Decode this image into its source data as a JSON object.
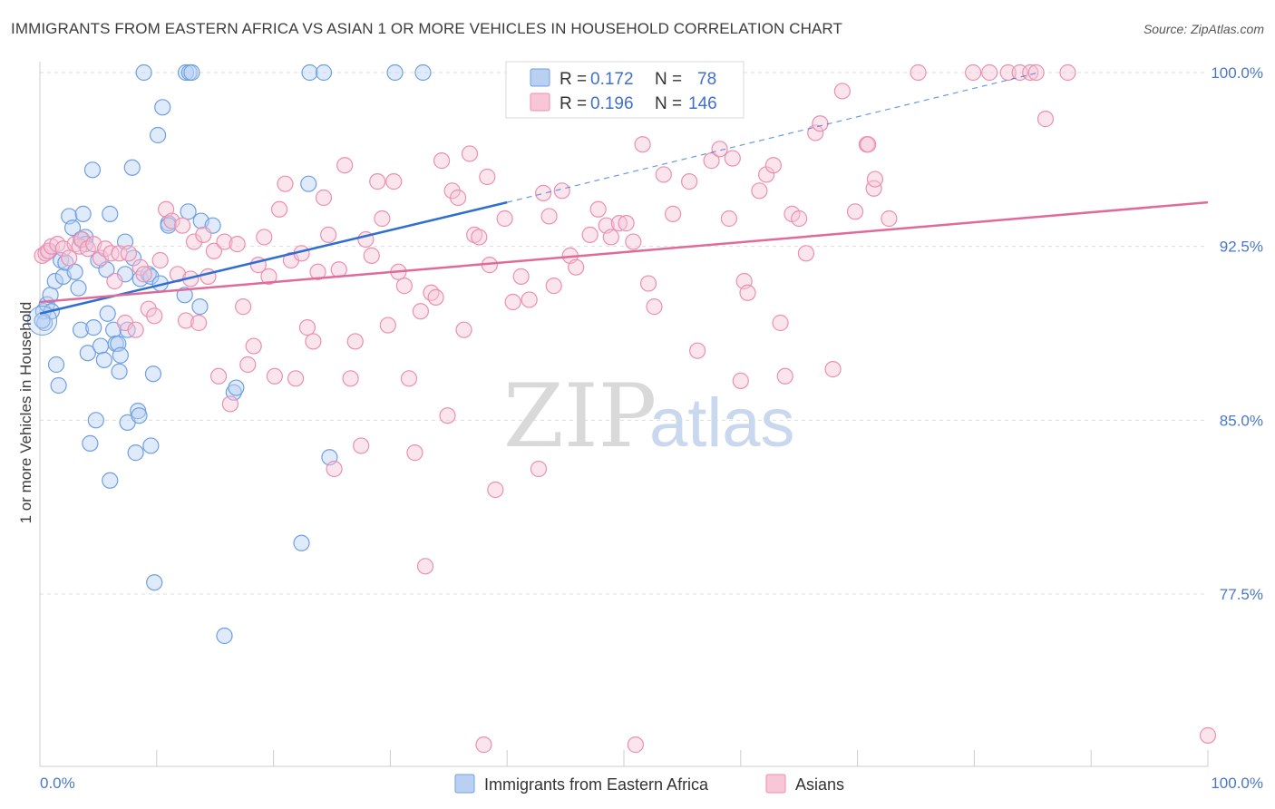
{
  "title": "IMMIGRANTS FROM EASTERN AFRICA VS ASIAN 1 OR MORE VEHICLES IN HOUSEHOLD CORRELATION CHART",
  "source": "Source: ZipAtlas.com",
  "watermark": {
    "zip": "ZIP",
    "atlas": "atlas"
  },
  "colors": {
    "blue": "#6f9fe3",
    "blue_fill": "#b9d0f3",
    "blue_line": "#2f6fd0",
    "pink": "#ec8fb0",
    "pink_fill": "#f7c6d7",
    "pink_line": "#e06a98",
    "tick_label": "#4a77c9"
  },
  "legend": {
    "r_label": "R =",
    "n_label": "N =",
    "rows": [
      {
        "r": "0.172",
        "n": "78"
      },
      {
        "r": "0.196",
        "n": "146"
      }
    ]
  },
  "chart_data": {
    "type": "scatter",
    "xlabel": "",
    "ylabel": "1 or more Vehicles in Household",
    "xlim": [
      0,
      100
    ],
    "ylim": [
      70.5,
      100.8
    ],
    "x_tick_labels": [
      "0.0%",
      "100.0%"
    ],
    "y_ticks": [
      77.5,
      85.0,
      92.5,
      100.0
    ],
    "y_tick_labels": [
      "77.5%",
      "85.0%",
      "92.5%",
      "100.0%"
    ],
    "grid": true,
    "legend_position": "top-center",
    "series": [
      {
        "name": "Immigrants from Eastern Africa",
        "trend": {
          "x": [
            0,
            40.0
          ],
          "y": [
            89.6,
            94.4
          ],
          "dashed_to": [
            85.5,
            100.0
          ]
        },
        "points": [
          [
            0.3,
            89.7
          ],
          [
            0.4,
            89.2
          ],
          [
            0.6,
            90.0
          ],
          [
            0.8,
            92.3
          ],
          [
            0.9,
            90.4
          ],
          [
            1.0,
            89.7
          ],
          [
            1.3,
            91.0
          ],
          [
            1.4,
            87.4
          ],
          [
            1.6,
            86.5
          ],
          [
            1.8,
            91.9
          ],
          [
            2.0,
            91.2
          ],
          [
            2.2,
            91.8
          ],
          [
            2.5,
            93.8
          ],
          [
            2.8,
            93.3
          ],
          [
            3.0,
            91.4
          ],
          [
            3.3,
            90.7
          ],
          [
            3.5,
            88.9
          ],
          [
            3.5,
            92.8
          ],
          [
            3.7,
            93.9
          ],
          [
            3.9,
            92.9
          ],
          [
            3.9,
            92.6
          ],
          [
            4.1,
            87.9
          ],
          [
            4.3,
            84.0
          ],
          [
            4.5,
            95.8
          ],
          [
            4.6,
            89.0
          ],
          [
            4.8,
            85.0
          ],
          [
            5.0,
            91.9
          ],
          [
            5.2,
            88.2
          ],
          [
            5.5,
            87.6
          ],
          [
            5.7,
            91.5
          ],
          [
            5.8,
            89.6
          ],
          [
            6.0,
            93.9
          ],
          [
            6.0,
            82.4
          ],
          [
            6.3,
            88.9
          ],
          [
            6.5,
            88.3
          ],
          [
            6.7,
            88.3
          ],
          [
            6.8,
            87.1
          ],
          [
            6.9,
            87.8
          ],
          [
            7.3,
            92.7
          ],
          [
            7.3,
            91.3
          ],
          [
            7.5,
            84.9
          ],
          [
            7.5,
            88.9
          ],
          [
            7.9,
            95.9
          ],
          [
            8.0,
            92.0
          ],
          [
            8.2,
            83.6
          ],
          [
            8.4,
            85.4
          ],
          [
            8.5,
            85.2
          ],
          [
            8.6,
            91.1
          ],
          [
            8.9,
            100.0
          ],
          [
            9.3,
            91.3
          ],
          [
            9.5,
            91.2
          ],
          [
            9.5,
            83.9
          ],
          [
            9.7,
            87.0
          ],
          [
            9.8,
            78.0
          ],
          [
            10.1,
            97.3
          ],
          [
            10.3,
            90.9
          ],
          [
            10.5,
            98.5
          ],
          [
            11.0,
            93.5
          ],
          [
            11.0,
            93.4
          ],
          [
            12.4,
            90.4
          ],
          [
            12.5,
            100.0
          ],
          [
            12.7,
            94.0
          ],
          [
            12.8,
            100.0
          ],
          [
            13.0,
            100.0
          ],
          [
            13.7,
            89.9
          ],
          [
            13.8,
            93.6
          ],
          [
            14.8,
            93.4
          ],
          [
            15.8,
            75.7
          ],
          [
            16.6,
            86.2
          ],
          [
            16.8,
            86.4
          ],
          [
            22.4,
            79.7
          ],
          [
            23.0,
            95.2
          ],
          [
            23.1,
            100.0
          ],
          [
            24.3,
            100.0
          ],
          [
            24.8,
            83.4
          ],
          [
            30.4,
            100.0
          ],
          [
            32.8,
            100.0
          ],
          [
            0.2,
            89.3
          ]
        ]
      },
      {
        "name": "Asians",
        "trend": {
          "x": [
            0,
            100
          ],
          "y": [
            90.1,
            94.4
          ]
        },
        "points": [
          [
            0.2,
            92.1
          ],
          [
            0.5,
            92.2
          ],
          [
            0.7,
            92.3
          ],
          [
            1.0,
            92.5
          ],
          [
            1.5,
            92.6
          ],
          [
            2.0,
            92.4
          ],
          [
            2.5,
            92.0
          ],
          [
            3.0,
            92.6
          ],
          [
            3.4,
            92.5
          ],
          [
            3.6,
            92.8
          ],
          [
            4.1,
            92.4
          ],
          [
            4.6,
            92.6
          ],
          [
            5.2,
            92.0
          ],
          [
            5.6,
            92.4
          ],
          [
            6.1,
            92.2
          ],
          [
            6.4,
            91.0
          ],
          [
            6.8,
            92.2
          ],
          [
            7.3,
            89.2
          ],
          [
            7.6,
            92.2
          ],
          [
            8.2,
            88.9
          ],
          [
            8.6,
            91.6
          ],
          [
            8.9,
            91.3
          ],
          [
            9.3,
            89.8
          ],
          [
            9.8,
            89.5
          ],
          [
            10.3,
            91.9
          ],
          [
            10.8,
            94.1
          ],
          [
            11.3,
            93.6
          ],
          [
            11.8,
            91.3
          ],
          [
            12.2,
            93.4
          ],
          [
            12.5,
            89.3
          ],
          [
            12.9,
            91.1
          ],
          [
            13.2,
            92.7
          ],
          [
            13.6,
            89.2
          ],
          [
            14.0,
            93.0
          ],
          [
            14.4,
            91.2
          ],
          [
            14.9,
            92.3
          ],
          [
            15.3,
            86.9
          ],
          [
            15.8,
            92.7
          ],
          [
            16.3,
            85.7
          ],
          [
            16.9,
            92.6
          ],
          [
            17.4,
            89.9
          ],
          [
            17.8,
            87.4
          ],
          [
            18.3,
            88.2
          ],
          [
            18.7,
            91.7
          ],
          [
            19.2,
            92.9
          ],
          [
            19.6,
            91.2
          ],
          [
            20.1,
            86.9
          ],
          [
            20.5,
            94.1
          ],
          [
            21.0,
            95.2
          ],
          [
            21.5,
            91.9
          ],
          [
            21.9,
            86.8
          ],
          [
            22.4,
            92.2
          ],
          [
            22.9,
            89.0
          ],
          [
            23.4,
            88.4
          ],
          [
            23.8,
            91.4
          ],
          [
            24.3,
            94.6
          ],
          [
            24.7,
            93.0
          ],
          [
            25.2,
            82.9
          ],
          [
            25.6,
            91.5
          ],
          [
            26.1,
            96.0
          ],
          [
            26.6,
            86.8
          ],
          [
            27.0,
            88.4
          ],
          [
            27.5,
            83.9
          ],
          [
            27.9,
            92.8
          ],
          [
            28.4,
            92.1
          ],
          [
            28.9,
            95.3
          ],
          [
            29.3,
            93.7
          ],
          [
            29.8,
            89.1
          ],
          [
            30.3,
            95.3
          ],
          [
            30.7,
            91.4
          ],
          [
            31.2,
            90.8
          ],
          [
            31.6,
            86.8
          ],
          [
            32.1,
            83.6
          ],
          [
            32.6,
            89.7
          ],
          [
            33.0,
            78.7
          ],
          [
            33.5,
            90.5
          ],
          [
            33.9,
            90.3
          ],
          [
            34.4,
            96.2
          ],
          [
            34.9,
            85.2
          ],
          [
            35.3,
            94.9
          ],
          [
            35.8,
            94.6
          ],
          [
            36.3,
            88.9
          ],
          [
            36.8,
            96.5
          ],
          [
            37.2,
            93.0
          ],
          [
            37.6,
            92.9
          ],
          [
            38.3,
            95.5
          ],
          [
            38.5,
            91.7
          ],
          [
            39.0,
            82.0
          ],
          [
            39.8,
            93.7
          ],
          [
            40.5,
            90.1
          ],
          [
            41.2,
            91.2
          ],
          [
            41.9,
            90.2
          ],
          [
            42.7,
            82.9
          ],
          [
            43.1,
            94.8
          ],
          [
            43.6,
            93.8
          ],
          [
            44.0,
            90.8
          ],
          [
            44.7,
            94.9
          ],
          [
            45.4,
            92.1
          ],
          [
            45.9,
            91.6
          ],
          [
            47.1,
            93.0
          ],
          [
            47.8,
            94.1
          ],
          [
            48.5,
            93.4
          ],
          [
            48.9,
            92.9
          ],
          [
            49.6,
            93.5
          ],
          [
            50.2,
            93.5
          ],
          [
            50.8,
            92.7
          ],
          [
            51.6,
            96.9
          ],
          [
            52.1,
            90.9
          ],
          [
            52.6,
            89.9
          ],
          [
            53.4,
            95.6
          ],
          [
            54.2,
            93.9
          ],
          [
            55.6,
            95.3
          ],
          [
            56.3,
            88.0
          ],
          [
            57.5,
            96.2
          ],
          [
            58.2,
            96.7
          ],
          [
            59.0,
            93.7
          ],
          [
            59.3,
            96.3
          ],
          [
            60.3,
            91.0
          ],
          [
            60.6,
            90.5
          ],
          [
            61.6,
            94.9
          ],
          [
            62.2,
            95.6
          ],
          [
            62.8,
            96.0
          ],
          [
            63.4,
            89.2
          ],
          [
            64.4,
            93.9
          ],
          [
            65.0,
            93.7
          ],
          [
            65.6,
            92.2
          ],
          [
            66.4,
            97.4
          ],
          [
            66.8,
            97.8
          ],
          [
            67.9,
            87.2
          ],
          [
            68.7,
            99.2
          ],
          [
            69.8,
            94.0
          ],
          [
            70.8,
            96.9
          ],
          [
            71.4,
            95.0
          ],
          [
            72.7,
            93.7
          ],
          [
            75.2,
            100.0
          ],
          [
            79.9,
            100.0
          ],
          [
            81.3,
            100.0
          ],
          [
            82.9,
            100.0
          ],
          [
            83.9,
            100.0
          ],
          [
            84.8,
            100.0
          ],
          [
            85.3,
            100.0
          ],
          [
            86.1,
            98.0
          ],
          [
            63.8,
            86.9
          ],
          [
            70.9,
            96.9
          ],
          [
            51.0,
            71.0
          ],
          [
            100.0,
            71.4
          ],
          [
            71.5,
            95.4
          ],
          [
            88.0,
            100.0
          ],
          [
            60.0,
            86.7
          ],
          [
            38.0,
            71.0
          ]
        ]
      }
    ]
  },
  "bottom_legend": [
    {
      "label": "Immigrants from Eastern Africa"
    },
    {
      "label": "Asians"
    }
  ]
}
